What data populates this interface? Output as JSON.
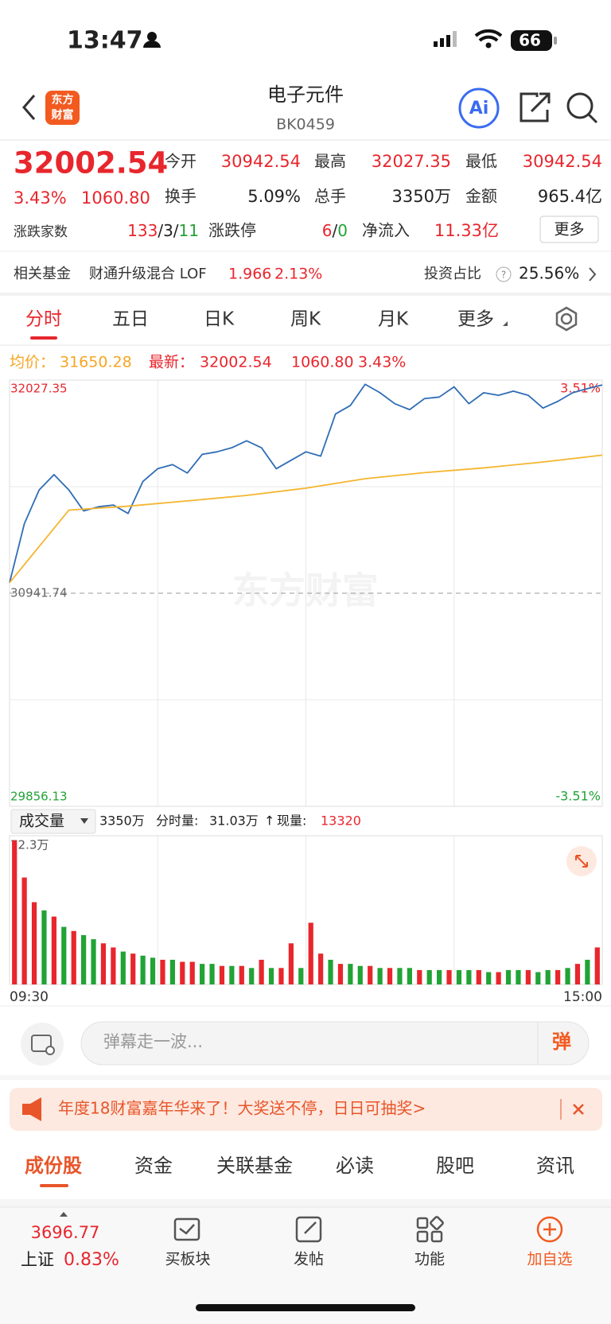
{
  "status_bar": {
    "time": "13:47",
    "battery": "66"
  },
  "header": {
    "logo": [
      "东方",
      "财富"
    ],
    "title": "电子元件",
    "code": "BK0459",
    "ai": "Ai"
  },
  "quote": {
    "price": "32002.54",
    "change_pct": "3.43%",
    "change": "1060.80",
    "fields": [
      {
        "label": "今开",
        "value": "30942.54"
      },
      {
        "label": "最高",
        "value": "32027.35"
      },
      {
        "label": "最低",
        "value": "30942.54"
      },
      {
        "label": "换手",
        "value": "5.09%"
      },
      {
        "label": "总手",
        "value": "3350万"
      },
      {
        "label": "金额",
        "value": "965.4亿"
      }
    ],
    "breadth": {
      "label": "涨跌家数",
      "up": "133",
      "flat": "3",
      "down": "11",
      "sep": "/"
    },
    "limit": {
      "label": "涨跌停",
      "up": "6",
      "down": "0"
    },
    "net_inflow": {
      "label": "净流入",
      "value": "11.33亿"
    },
    "more": "更多"
  },
  "fund": {
    "label": "相关基金",
    "name": "财通升级混合 LOF",
    "price": "1.966",
    "change": "2.13%",
    "ratio_label": "投资占比",
    "help": "?",
    "ratio": "25.56%"
  },
  "tabs": [
    "分时",
    "五日",
    "日K",
    "周K",
    "月K",
    "更多"
  ],
  "info": {
    "avg_label": "均价：",
    "avg": "31650.28",
    "last_label": "最新：",
    "last": "32002.54",
    "change": "1060.80",
    "pct": "3.43%"
  },
  "watermark": "东方财富",
  "volume_header": {
    "selector": "成交量",
    "total": "3350万",
    "period_label": "分时量:",
    "period": "31.03万",
    "arrow": "↑",
    "now_label": "现量:",
    "now": "13320"
  },
  "chart_data": [
    {
      "type": "line",
      "series": [
        {
          "name": "price",
          "color": "#2f6db5",
          "values": [
            30995,
            31296,
            31468,
            31546,
            31468,
            31361,
            31382,
            31391,
            31348,
            31511,
            31576,
            31597,
            31554,
            31649,
            31662,
            31683,
            31718,
            31683,
            31576,
            31619,
            31662,
            31640,
            31855,
            31898,
            32006,
            31963,
            31907,
            31877,
            31933,
            31941,
            31993,
            31907,
            31963,
            31950,
            31971,
            31950,
            31885,
            31919,
            31963,
            31984,
            32002.54
          ]
        },
        {
          "name": "average",
          "color": "#f5b52e",
          "values": [
            30995,
            31365,
            31385,
            31412,
            31440,
            31477,
            31525,
            31556,
            31580,
            31610,
            31645
          ]
        }
      ],
      "ylim": [
        29856.13,
        32027.35
      ],
      "yticks": [
        32027.35,
        30941.74,
        29856.13
      ],
      "y2lim": [
        -3.51,
        3.51
      ],
      "y2ticks": [
        {
          "value": 3.51,
          "label": "3.51%"
        },
        {
          "value": -3.51,
          "label": "-3.51%"
        }
      ],
      "up_color": "#e8262d",
      "down_color": "#21a336",
      "flat_color": "#666666"
    },
    {
      "type": "bar",
      "values": [
        70,
        52,
        40,
        36,
        33,
        28,
        26,
        24,
        22,
        20,
        18,
        16,
        15,
        14,
        13,
        12,
        12,
        11,
        11,
        10,
        10,
        9,
        9,
        9,
        8,
        12,
        8,
        8,
        20,
        8,
        30,
        15,
        12,
        10,
        10,
        9,
        9,
        8,
        8,
        8,
        8,
        7,
        7,
        7,
        7,
        7,
        7,
        7,
        6,
        6,
        7,
        7,
        7,
        6,
        7,
        7,
        8,
        10,
        12,
        18
      ],
      "colors": [
        "#e8262d",
        "#e8262d",
        "#e8262d",
        "#21a336",
        "#e8262d",
        "#21a336",
        "#e8262d",
        "#21a336",
        "#21a336",
        "#e8262d",
        "#e8262d",
        "#21a336",
        "#e8262d",
        "#21a336",
        "#21a336",
        "#e8262d",
        "#21a336",
        "#e8262d",
        "#e8262d",
        "#21a336",
        "#21a336",
        "#e8262d",
        "#21a336",
        "#e8262d",
        "#21a336",
        "#e8262d",
        "#21a336",
        "#e8262d",
        "#e8262d",
        "#21a336",
        "#e8262d",
        "#e8262d",
        "#21a336",
        "#e8262d",
        "#21a336",
        "#21a336",
        "#e8262d",
        "#21a336",
        "#e8262d",
        "#21a336",
        "#21a336",
        "#e8262d",
        "#21a336",
        "#21a336",
        "#e8262d",
        "#21a336",
        "#21a336",
        "#e8262d",
        "#21a336",
        "#e8262d",
        "#21a336",
        "#21a336",
        "#e8262d",
        "#21a336",
        "#21a336",
        "#e8262d",
        "#21a336",
        "#e8262d",
        "#21a336",
        "#e8262d"
      ],
      "ylim": [
        0,
        72.3
      ],
      "yticks": [
        {
          "value": 72.3,
          "label": "72.3万"
        }
      ],
      "xticks": [
        "09:30",
        "15:00"
      ]
    }
  ],
  "comment": {
    "placeholder": "弹幕走一波...",
    "button": "弹"
  },
  "banner": {
    "text": "年度18财富嘉年华来了！大奖送不停，日日可抽奖>"
  },
  "subtabs": [
    "成份股",
    "资金",
    "关联基金",
    "必读",
    "股吧",
    "资讯"
  ],
  "bottom_nav": {
    "index_value": "3696.77",
    "index_name": "上证",
    "index_change": "0.83%",
    "items": [
      "买板块",
      "发帖",
      "功能",
      "加自选"
    ]
  }
}
